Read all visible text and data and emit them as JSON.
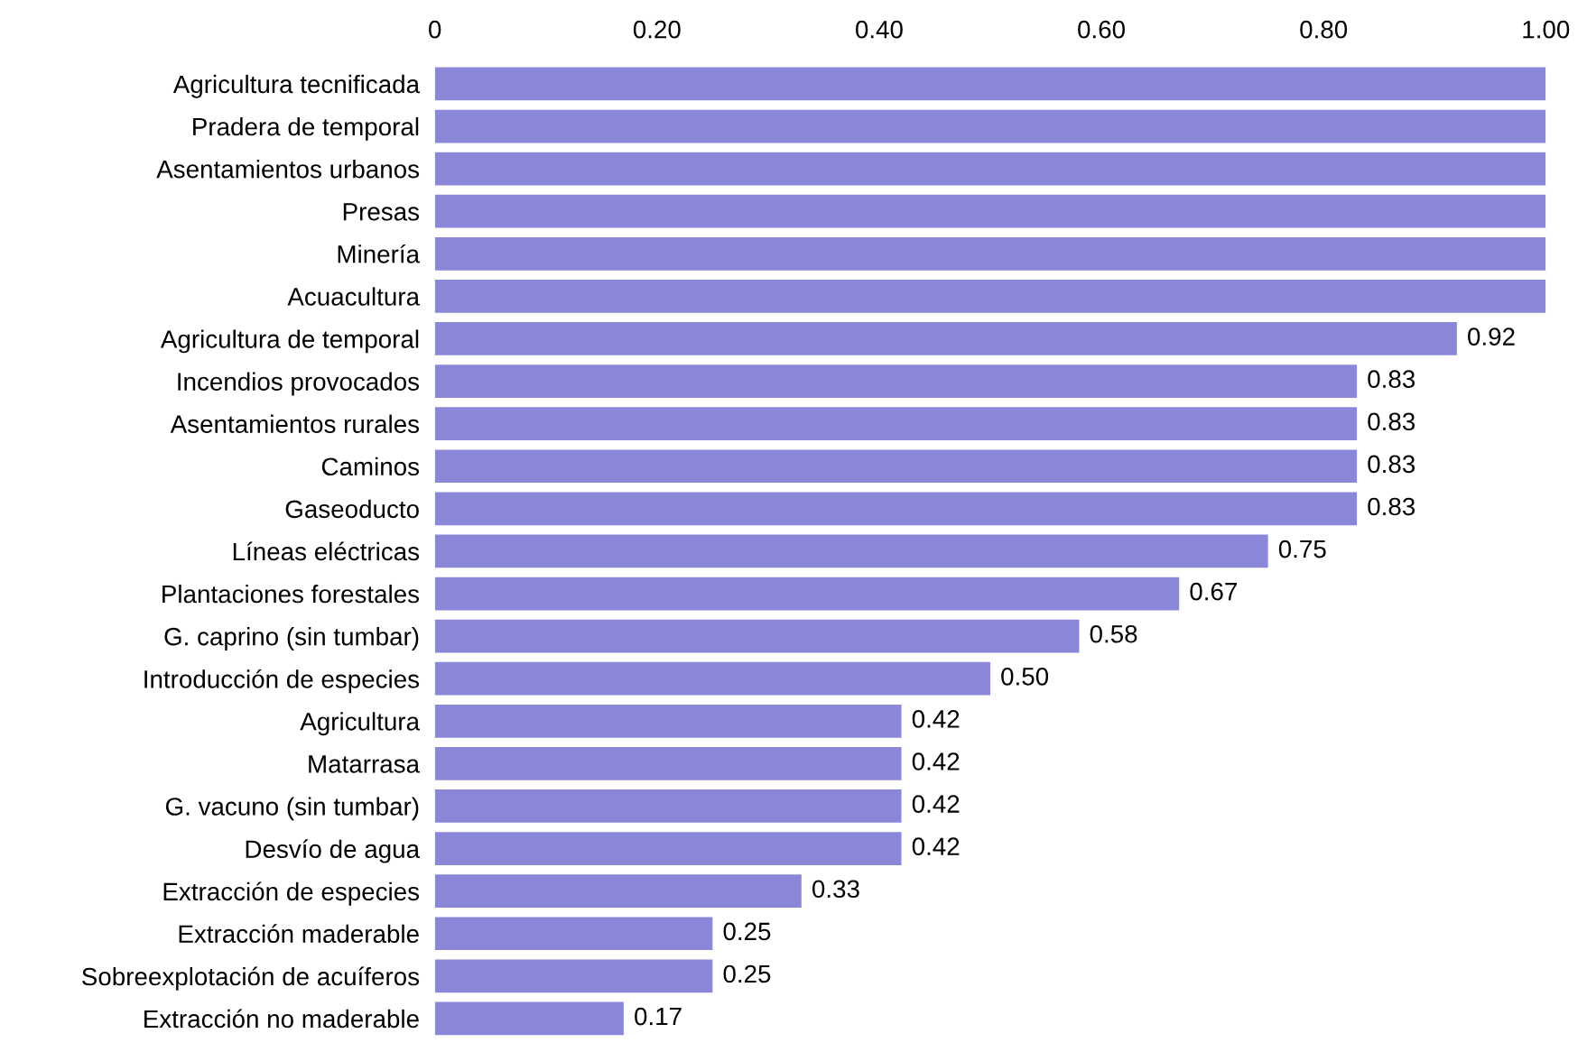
{
  "chart_data": {
    "type": "bar",
    "orientation": "horizontal",
    "color": "#8a87d8",
    "categories": [
      "Agricultura tecnificada",
      "Pradera de temporal",
      "Asentamientos urbanos",
      "Presas",
      "Minería",
      "Acuacultura",
      "Agricultura de temporal",
      "Incendios provocados",
      "Asentamientos rurales",
      "Caminos",
      "Gaseoducto",
      "Líneas eléctricas",
      "Plantaciones forestales",
      "G. caprino (sin tumbar)",
      "Introducción de especies",
      "Agricultura",
      "Matarrasa",
      "G. vacuno (sin tumbar)",
      "Desvío de agua",
      "Extracción de especies",
      "Extracción maderable",
      "Sobreexplotación de acuíferos",
      "Extracción no maderable"
    ],
    "values": [
      1.0,
      1.0,
      1.0,
      1.0,
      1.0,
      1.0,
      0.92,
      0.83,
      0.83,
      0.83,
      0.83,
      0.75,
      0.67,
      0.58,
      0.5,
      0.42,
      0.42,
      0.42,
      0.42,
      0.33,
      0.25,
      0.25,
      0.17
    ],
    "value_labels": [
      null,
      null,
      null,
      null,
      null,
      null,
      "0.92",
      "0.83",
      "0.83",
      "0.83",
      "0.83",
      "0.75",
      "0.67",
      "0.58",
      "0.50",
      "0.42",
      "0.42",
      "0.42",
      "0.42",
      "0.33",
      "0.25",
      "0.25",
      "0.17"
    ],
    "xlim": [
      0,
      1
    ],
    "xticks": [
      0,
      {
        "value": 0.2,
        "label": "0.20"
      },
      {
        "value": 0.4,
        "label": "0.40"
      },
      {
        "value": 0.6,
        "label": "0.60"
      },
      {
        "value": 0.8,
        "label": "0.80"
      },
      {
        "value": 1.0,
        "label": "1.00"
      }
    ],
    "grid": false,
    "legend": false
  }
}
